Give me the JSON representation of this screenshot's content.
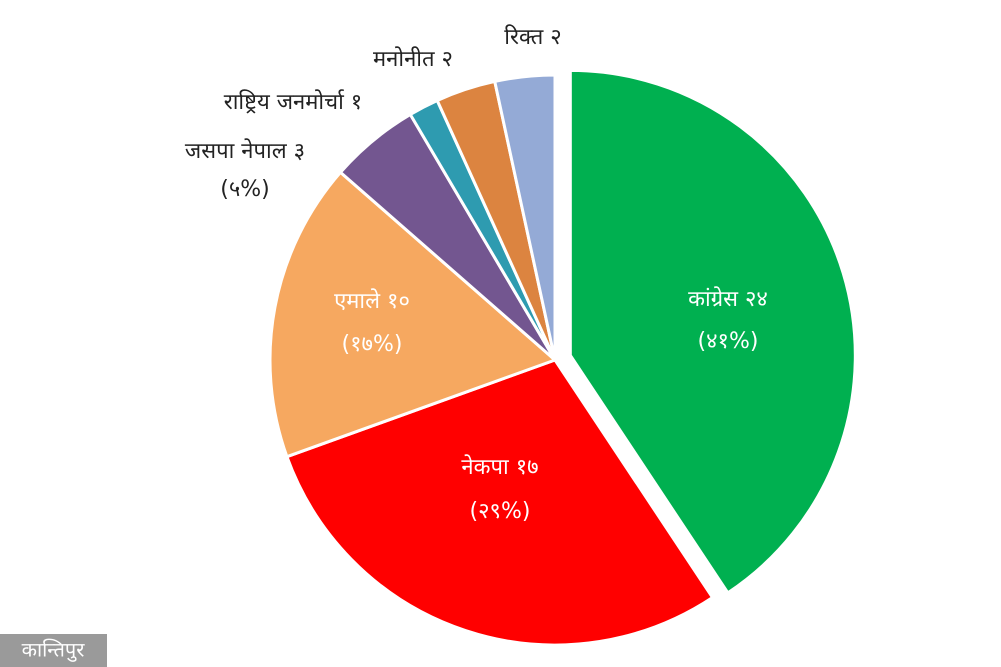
{
  "chart_data": {
    "type": "pie",
    "categories": [
      "कांग्रेस",
      "नेकपा",
      "एमाले",
      "जसपा नेपाल",
      "राष्ट्रिय जनमोर्चा",
      "मनोनीत",
      "रिक्त"
    ],
    "values": [
      24,
      17,
      10,
      3,
      1,
      2,
      2
    ],
    "value_labels": [
      "२४",
      "१७",
      "१०",
      "३",
      "१",
      "२",
      "२"
    ],
    "percentages": [
      41,
      29,
      17,
      5,
      null,
      null,
      null
    ],
    "percentage_labels": [
      "(४१%)",
      "(२९%)",
      "(१७%)",
      "(५%)",
      null,
      null,
      null
    ],
    "colors": [
      "#00b050",
      "#ff0000",
      "#f6a860",
      "#735690",
      "#2e9bb0",
      "#dc8440",
      "#94aad6"
    ],
    "exploded": [
      true,
      false,
      false,
      false,
      false,
      false,
      false
    ]
  },
  "watermark": "कान्तिपुर"
}
